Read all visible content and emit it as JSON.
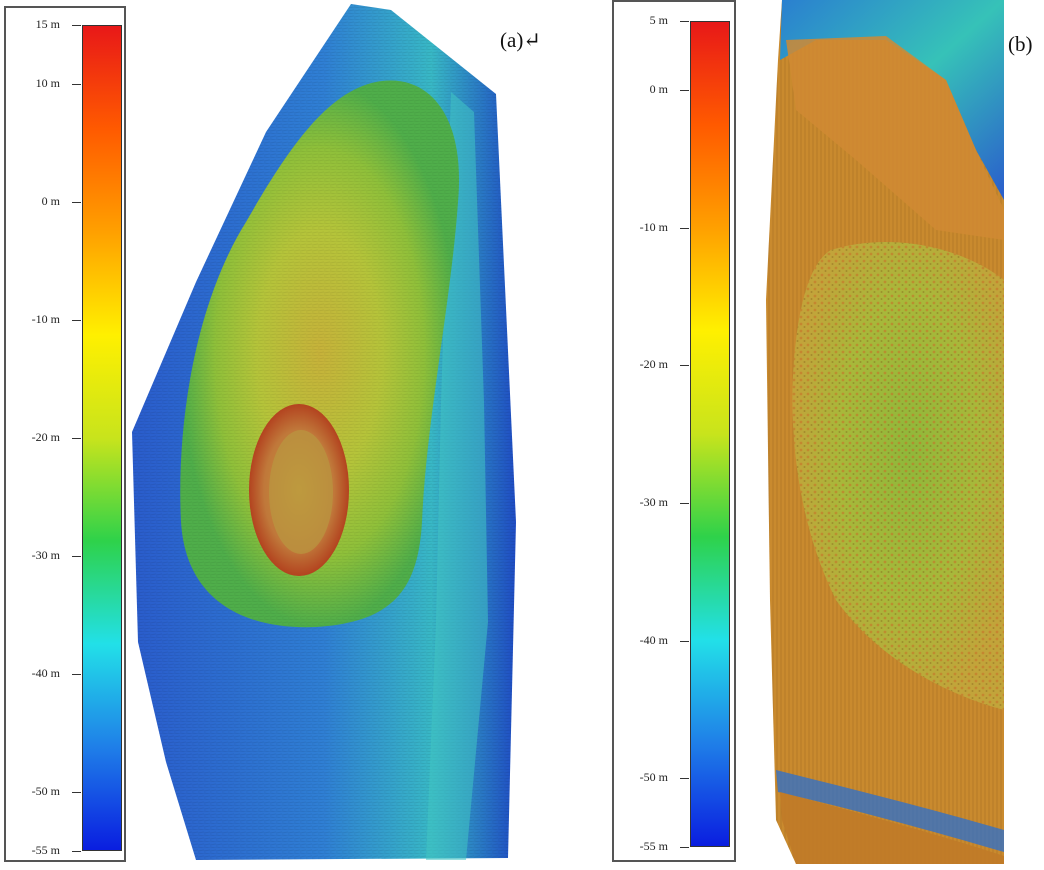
{
  "panels": [
    {
      "label": "(a)↵",
      "colorbar": {
        "min": -55,
        "max": 15,
        "ticks": [
          {
            "value": 15,
            "label": "15 m"
          },
          {
            "value": 10,
            "label": "10 m"
          },
          {
            "value": 0,
            "label": "0 m"
          },
          {
            "value": -10,
            "label": "-10 m"
          },
          {
            "value": -20,
            "label": "-20 m"
          },
          {
            "value": -30,
            "label": "-30 m"
          },
          {
            "value": -40,
            "label": "-40 m"
          },
          {
            "value": -50,
            "label": "-50 m"
          },
          {
            "value": -55,
            "label": "-55 m"
          }
        ]
      }
    },
    {
      "label": "(b)",
      "colorbar": {
        "min": -55,
        "max": 5,
        "ticks": [
          {
            "value": 5,
            "label": "5 m"
          },
          {
            "value": 0,
            "label": "0 m"
          },
          {
            "value": -10,
            "label": "-10 m"
          },
          {
            "value": -20,
            "label": "-20 m"
          },
          {
            "value": -30,
            "label": "-30 m"
          },
          {
            "value": -40,
            "label": "-40 m"
          },
          {
            "value": -50,
            "label": "-50 m"
          },
          {
            "value": -55,
            "label": "-55 m"
          }
        ]
      }
    }
  ],
  "colors": {
    "ramp": [
      "#0a1ee0",
      "#1f7fe8",
      "#22e0e8",
      "#2ed24a",
      "#c8e41c",
      "#fff000",
      "#ffa000",
      "#ff5a00",
      "#e81818"
    ],
    "deep_blue": "#1e3fbf",
    "mid_blue": "#2f8fd8",
    "cyan": "#3fd6c4",
    "green": "#6fbf3a",
    "yellow_green": "#b9c83a",
    "orange": "#d98a28",
    "red_brown": "#b8461e"
  }
}
